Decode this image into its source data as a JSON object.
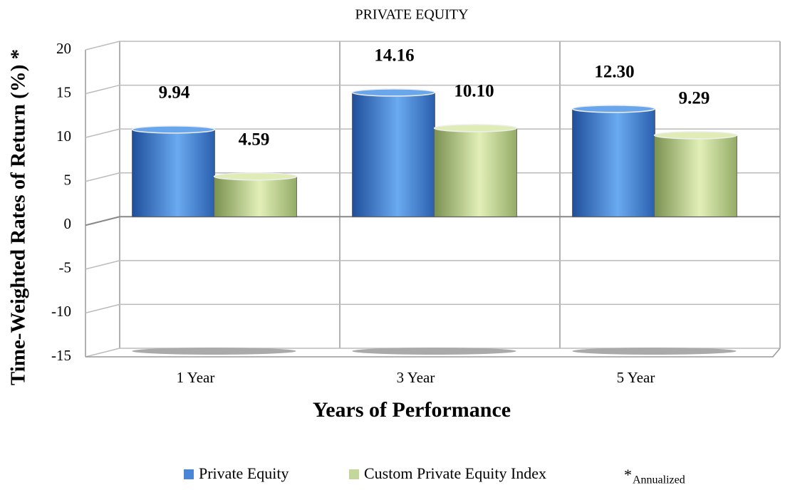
{
  "chart_data": {
    "type": "bar",
    "title": "PRIVATE EQUITY",
    "x_label": "Years of Performance",
    "y_label": "Time-Weighted Rates of Return (%) *",
    "categories": [
      "1 Year",
      "3 Year",
      "5 Year"
    ],
    "series": [
      {
        "name": "Private Equity",
        "color": "#4a86d8",
        "values": [
          9.94,
          14.16,
          12.3
        ],
        "value_labels": [
          "9.94",
          "14.16",
          "12.30"
        ]
      },
      {
        "name": "Custom Private Equity Index",
        "color": "#c4d79b",
        "values": [
          4.59,
          10.1,
          9.29
        ],
        "value_labels": [
          "4.59",
          "10.10",
          "9.29"
        ]
      }
    ],
    "ylim": [
      -15,
      20
    ],
    "yticks": [
      -15,
      -10,
      -5,
      0,
      5,
      10,
      15,
      20
    ],
    "grid": true,
    "footnote_mark": "*",
    "footnote": "Annualized"
  }
}
